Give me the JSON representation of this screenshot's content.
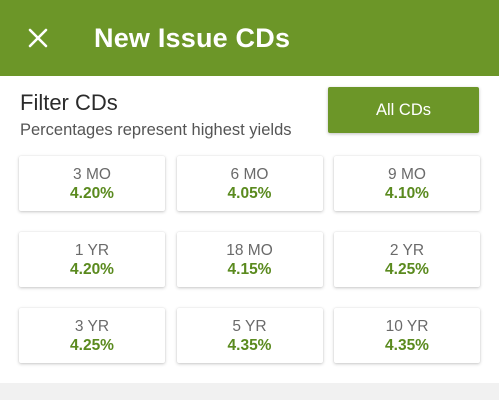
{
  "appbar": {
    "title": "New Issue CDs",
    "close_icon": "close-icon"
  },
  "filter": {
    "title": "Filter CDs",
    "subtitle": "Percentages represent highest yields",
    "all_button_label": "All CDs"
  },
  "cds": [
    {
      "term": "3 MO",
      "rate": "4.20%"
    },
    {
      "term": "6 MO",
      "rate": "4.05%"
    },
    {
      "term": "9 MO",
      "rate": "4.10%"
    },
    {
      "term": "1 YR",
      "rate": "4.20%"
    },
    {
      "term": "18 MO",
      "rate": "4.15%"
    },
    {
      "term": "2 YR",
      "rate": "4.25%"
    },
    {
      "term": "3 YR",
      "rate": "4.25%"
    },
    {
      "term": "5 YR",
      "rate": "4.35%"
    },
    {
      "term": "10 YR",
      "rate": "4.35%"
    }
  ],
  "colors": {
    "brand": "#6c9628",
    "rate_text": "#5a8a1e",
    "background": "#ffffff",
    "footer": "#f1f1f1"
  }
}
